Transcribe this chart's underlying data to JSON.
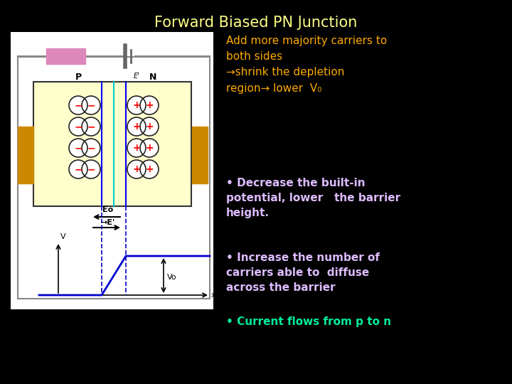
{
  "background_color": "#000000",
  "title": "Forward Biased PN Junction",
  "title_color": "#ffff88",
  "title_fontsize": 15,
  "text_color": "#ffaa00",
  "bullet_color": "#ddbbff",
  "cyan_color": "#00ee99",
  "top_text": "Add more majority carriers to\nboth sides\n→shrink the depletion\nregion→ lower  V₀",
  "bullet1": "• Decrease the built-in\npotential, lower   the barrier\nheight.",
  "bullet2": "• Increase the number of\ncarriers able to  diffuse\nacross the barrier",
  "bullet3": "• Current flows from p to n",
  "diagram_bg": "#ffffff",
  "pn_fill": "#ffffcc",
  "depletion_line": "#00cccc",
  "minus_circle_outline": "#222222",
  "minus_symbol": "#ff0000",
  "plus_circle_outline": "#222222",
  "plus_symbol": "#ff0000",
  "contact_color": "#cc8800",
  "battery_color": "#dd88bb",
  "arrow_color": "#0000cc",
  "dashed_color": "#0000cc"
}
